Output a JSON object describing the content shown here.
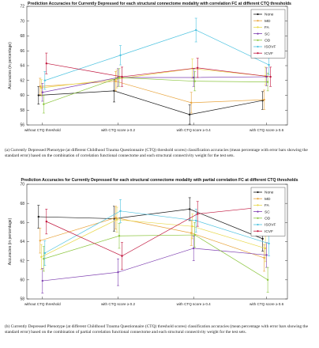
{
  "chart_data": [
    {
      "type": "line",
      "title": "Prediction Accuracies for Currently Depressed for each structural connectome modality with correlation FC at different CTQ thresholds",
      "ylabel": "Accuracies (in percentage)",
      "xlabel": "",
      "categories": [
        "without CTQ threshold",
        "with CTQ score ≥ 0.2",
        "with CTQ score ≥ 0.4",
        "with CTQ score ≥ 0.6"
      ],
      "ylim": [
        56,
        72
      ],
      "yticks": [
        56,
        58,
        60,
        62,
        64,
        66,
        68,
        70,
        72
      ],
      "grid": false,
      "legend_position": "top-right",
      "series": [
        {
          "name": "None",
          "color": "#1a1a1a",
          "values": [
            60.0,
            60.6,
            57.4,
            59.3
          ],
          "errors": [
            1.2,
            1.5,
            1.3,
            1.2
          ]
        },
        {
          "name": "MD",
          "color": "#e8a33a",
          "values": [
            61.2,
            61.9,
            59.0,
            59.4
          ],
          "errors": [
            1.1,
            1.3,
            1.4,
            1.3
          ]
        },
        {
          "name": "FA",
          "color": "#e8d84a",
          "values": [
            61.0,
            62.2,
            63.6,
            62.6
          ],
          "errors": [
            1.1,
            1.2,
            1.3,
            1.2
          ]
        },
        {
          "name": "SC",
          "color": "#7e3fb0",
          "values": [
            60.4,
            62.4,
            62.4,
            62.5
          ],
          "errors": [
            1.2,
            1.2,
            1.2,
            1.2
          ]
        },
        {
          "name": "OD",
          "color": "#8cc63f",
          "values": [
            58.8,
            62.4,
            61.9,
            61.8
          ],
          "errors": [
            1.2,
            1.2,
            1.3,
            1.2
          ]
        },
        {
          "name": "ISOVF",
          "color": "#4ec3e0",
          "values": [
            62.0,
            65.4,
            68.8,
            64.1
          ],
          "errors": [
            1.2,
            1.3,
            1.6,
            1.3
          ]
        },
        {
          "name": "ICVF",
          "color": "#c0143c",
          "values": [
            64.3,
            62.5,
            63.7,
            62.5
          ],
          "errors": [
            1.4,
            1.3,
            1.3,
            1.3
          ]
        }
      ]
    },
    {
      "type": "line",
      "title": "Prediction Accuracies for Currently Depressed for each structural connectome modality with partial correlation FC at different CTQ thresholds",
      "ylabel": "Accuracies (in percentage)",
      "xlabel": "",
      "categories": [
        "without CTQ threshold",
        "with CTQ score ≥ 0.2",
        "with CTQ score ≥ 0.4",
        "with CTQ score ≥ 0.6"
      ],
      "ylim": [
        58,
        70
      ],
      "yticks": [
        58,
        60,
        62,
        64,
        66,
        68,
        70
      ],
      "grid": false,
      "legend_position": "top-right",
      "series": [
        {
          "name": "None",
          "color": "#1a1a1a",
          "values": [
            66.6,
            66.4,
            67.4,
            64.3
          ],
          "errors": [
            1.2,
            1.3,
            1.2,
            1.3
          ]
        },
        {
          "name": "MD",
          "color": "#e8a33a",
          "values": [
            64.1,
            66.5,
            64.9,
            62.3
          ],
          "errors": [
            1.3,
            1.2,
            1.3,
            1.4
          ]
        },
        {
          "name": "FA",
          "color": "#e8d84a",
          "values": [
            62.4,
            66.3,
            65.6,
            63.3
          ],
          "errors": [
            1.3,
            1.3,
            1.3,
            1.4
          ]
        },
        {
          "name": "SC",
          "color": "#7e3fb0",
          "values": [
            59.9,
            60.8,
            63.3,
            62.6
          ],
          "errors": [
            1.3,
            1.4,
            1.3,
            1.3
          ]
        },
        {
          "name": "OD",
          "color": "#8cc63f",
          "values": [
            62.2,
            64.6,
            64.7,
            60.0
          ],
          "errors": [
            1.3,
            1.3,
            1.3,
            1.3
          ]
        },
        {
          "name": "ISOVF",
          "color": "#4ec3e0",
          "values": [
            62.8,
            67.2,
            66.2,
            63.8
          ],
          "errors": [
            1.3,
            1.2,
            1.2,
            1.3
          ]
        },
        {
          "name": "ICVF",
          "color": "#c0143c",
          "values": [
            66.1,
            62.5,
            66.9,
            67.7
          ],
          "errors": [
            1.3,
            1.4,
            1.3,
            1.3
          ]
        }
      ]
    }
  ],
  "captions": [
    "(a) Currently Depressed Phenotype (at different Childhood Trauma Questionnaire (CTQ) threshold scores) classification accuracies (mean percentage with error bars showing the standard error) based on the combination of correlation functional connectome and each structural connectivity weight for the test sets.",
    "(b) Currently Depressed Phenotype (at different Childhood Trauma Questionnaire (CTQ) threshold scores) classification accuracies (mean percentage with error bars showing the standard error) based on the combination of partial correlation functional connectome and each structural connectivity weight for the test sets."
  ]
}
